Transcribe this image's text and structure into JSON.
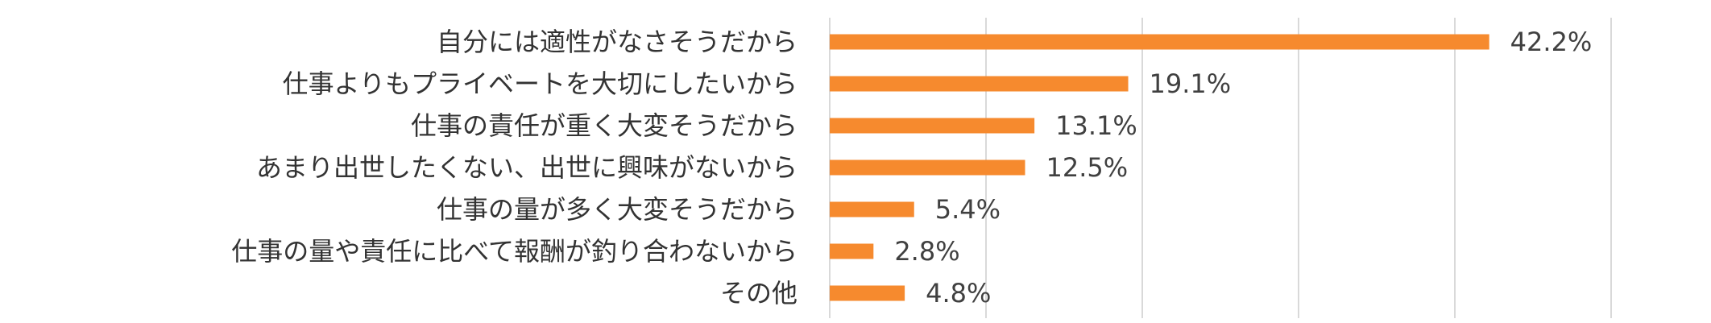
{
  "chart_data": {
    "type": "bar",
    "orientation": "horizontal",
    "categories": [
      "自分には適性がなさそうだから",
      "仕事よりもプライベートを大切にしたいから",
      "仕事の責任が重く大変そうだから",
      "あまり出世したくない、出世に興味がないから",
      "仕事の量が多く大変そうだから",
      "仕事の量や責任に比べて報酬が釣り合わないから",
      "その他"
    ],
    "values": [
      42.2,
      19.1,
      13.1,
      12.5,
      5.4,
      2.8,
      4.8
    ],
    "value_labels": [
      "42.2%",
      "19.1%",
      "13.1%",
      "12.5%",
      "5.4%",
      "2.8%",
      "4.8%"
    ],
    "xlim": [
      0,
      50
    ],
    "grid": true,
    "title": "",
    "xlabel": "",
    "ylabel": "",
    "colors": {
      "bar": "#F68A2E",
      "grid": "#D9D9D9",
      "category_text": "#333333",
      "value_text": "#404040"
    }
  }
}
